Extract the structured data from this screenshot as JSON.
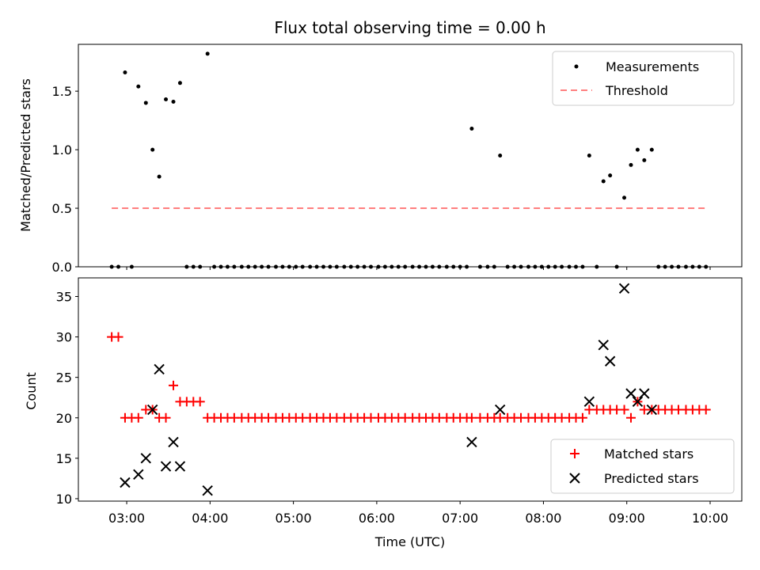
{
  "chart_data": {
    "title": "Flux total observing time = 0.00 h",
    "xlabel": "Time (UTC)",
    "x_ticks": [
      "03:00",
      "04:00",
      "05:00",
      "06:00",
      "07:00",
      "08:00",
      "09:00",
      "10:00"
    ],
    "x_tick_hours": [
      3,
      4,
      5,
      6,
      7,
      8,
      9,
      10
    ],
    "panels": [
      {
        "type": "scatter",
        "ylabel": "Matched/Predicted stars",
        "ylim": [
          0,
          1.9
        ],
        "y_ticks": [
          0.0,
          0.5,
          1.0,
          1.5
        ],
        "y_tick_labels": [
          "0.0",
          "0.5",
          "1.0",
          "1.5"
        ],
        "legend_position": "top-right",
        "series": [
          {
            "name": "Measurements",
            "color": "#000000",
            "marker": "dot",
            "x": [
              2.82,
              2.9,
              2.98,
              3.06,
              3.14,
              3.23,
              3.31,
              3.39,
              3.47,
              3.56,
              3.64,
              3.72,
              3.8,
              3.88,
              3.97,
              4.05,
              4.13,
              4.21,
              4.29,
              4.38,
              4.46,
              4.54,
              4.62,
              4.7,
              4.79,
              4.87,
              4.95,
              5.03,
              5.11,
              5.2,
              5.28,
              5.36,
              5.44,
              5.52,
              5.61,
              5.69,
              5.77,
              5.85,
              5.93,
              6.02,
              6.1,
              6.18,
              6.26,
              6.34,
              6.43,
              6.51,
              6.59,
              6.67,
              6.75,
              6.84,
              6.92,
              7.0,
              7.08,
              7.14,
              7.24,
              7.33,
              7.41,
              7.48,
              7.57,
              7.65,
              7.73,
              7.82,
              7.9,
              7.98,
              8.06,
              8.14,
              8.22,
              8.31,
              8.39,
              8.47,
              8.55,
              8.64,
              8.72,
              8.8,
              8.88,
              8.97,
              9.05,
              9.13,
              9.21,
              9.3,
              9.38,
              9.46,
              9.54,
              9.62,
              9.71,
              9.79,
              9.87,
              9.95
            ],
            "y": [
              0,
              0,
              1.66,
              0,
              1.54,
              1.4,
              1.0,
              0.77,
              1.43,
              1.41,
              1.57,
              0,
              0,
              0,
              1.82,
              0,
              0,
              0,
              0,
              0,
              0,
              0,
              0,
              0,
              0,
              0,
              0,
              0,
              0,
              0,
              0,
              0,
              0,
              0,
              0,
              0,
              0,
              0,
              0,
              0,
              0,
              0,
              0,
              0,
              0,
              0,
              0,
              0,
              0,
              0,
              0,
              0,
              0,
              1.18,
              0,
              0,
              0,
              0.95,
              0,
              0,
              0,
              0,
              0,
              0,
              0,
              0,
              0,
              0,
              0,
              0,
              0.95,
              0,
              0.73,
              0.78,
              0,
              0.59,
              0.87,
              1.0,
              0.91,
              1.0,
              0,
              0,
              0,
              0,
              0,
              0,
              0,
              0
            ]
          },
          {
            "name": "Threshold",
            "color": "#ff7f7f",
            "style": "dashed",
            "x": [
              2.82,
              9.95
            ],
            "y": [
              0.5,
              0.5
            ]
          }
        ]
      },
      {
        "type": "scatter",
        "ylabel": "Count",
        "ylim": [
          9.7,
          37.3
        ],
        "y_ticks": [
          10,
          15,
          20,
          25,
          30,
          35
        ],
        "y_tick_labels": [
          "10",
          "15",
          "20",
          "25",
          "30",
          "35"
        ],
        "legend_position": "bottom-right",
        "series": [
          {
            "name": "Matched stars",
            "color": "#ff0000",
            "marker": "plus",
            "x": [
              2.82,
              2.9,
              2.98,
              3.06,
              3.14,
              3.23,
              3.31,
              3.39,
              3.47,
              3.56,
              3.64,
              3.72,
              3.8,
              3.88,
              3.97,
              4.05,
              4.13,
              4.21,
              4.29,
              4.38,
              4.46,
              4.54,
              4.62,
              4.7,
              4.79,
              4.87,
              4.95,
              5.03,
              5.11,
              5.2,
              5.28,
              5.36,
              5.44,
              5.52,
              5.61,
              5.69,
              5.77,
              5.85,
              5.93,
              6.02,
              6.1,
              6.18,
              6.26,
              6.34,
              6.43,
              6.51,
              6.59,
              6.67,
              6.75,
              6.84,
              6.92,
              7.0,
              7.08,
              7.14,
              7.24,
              7.33,
              7.41,
              7.48,
              7.57,
              7.65,
              7.73,
              7.82,
              7.9,
              7.98,
              8.06,
              8.14,
              8.22,
              8.31,
              8.39,
              8.47,
              8.55,
              8.64,
              8.72,
              8.8,
              8.88,
              8.97,
              9.05,
              9.13,
              9.21,
              9.3,
              9.38,
              9.46,
              9.54,
              9.62,
              9.71,
              9.79,
              9.87,
              9.95
            ],
            "y": [
              30,
              30,
              20,
              20,
              20,
              21,
              21,
              20,
              20,
              24,
              22,
              22,
              22,
              22,
              20,
              20,
              20,
              20,
              20,
              20,
              20,
              20,
              20,
              20,
              20,
              20,
              20,
              20,
              20,
              20,
              20,
              20,
              20,
              20,
              20,
              20,
              20,
              20,
              20,
              20,
              20,
              20,
              20,
              20,
              20,
              20,
              20,
              20,
              20,
              20,
              20,
              20,
              20,
              20,
              20,
              20,
              20,
              20,
              20,
              20,
              20,
              20,
              20,
              20,
              20,
              20,
              20,
              20,
              20,
              20,
              21,
              21,
              21,
              21,
              21,
              21,
              20,
              22,
              21,
              21,
              21,
              21,
              21,
              21,
              21,
              21,
              21,
              21
            ]
          },
          {
            "name": "Predicted stars",
            "color": "#000000",
            "marker": "x",
            "x": [
              2.98,
              3.14,
              3.23,
              3.31,
              3.39,
              3.47,
              3.56,
              3.64,
              3.97,
              7.14,
              7.48,
              8.55,
              8.72,
              8.8,
              8.97,
              9.05,
              9.13,
              9.21,
              9.3
            ],
            "y": [
              12,
              13,
              15,
              21,
              26,
              14,
              17,
              14,
              11,
              17,
              21,
              22,
              29,
              27,
              36,
              23,
              22,
              23,
              21
            ]
          }
        ]
      }
    ]
  }
}
